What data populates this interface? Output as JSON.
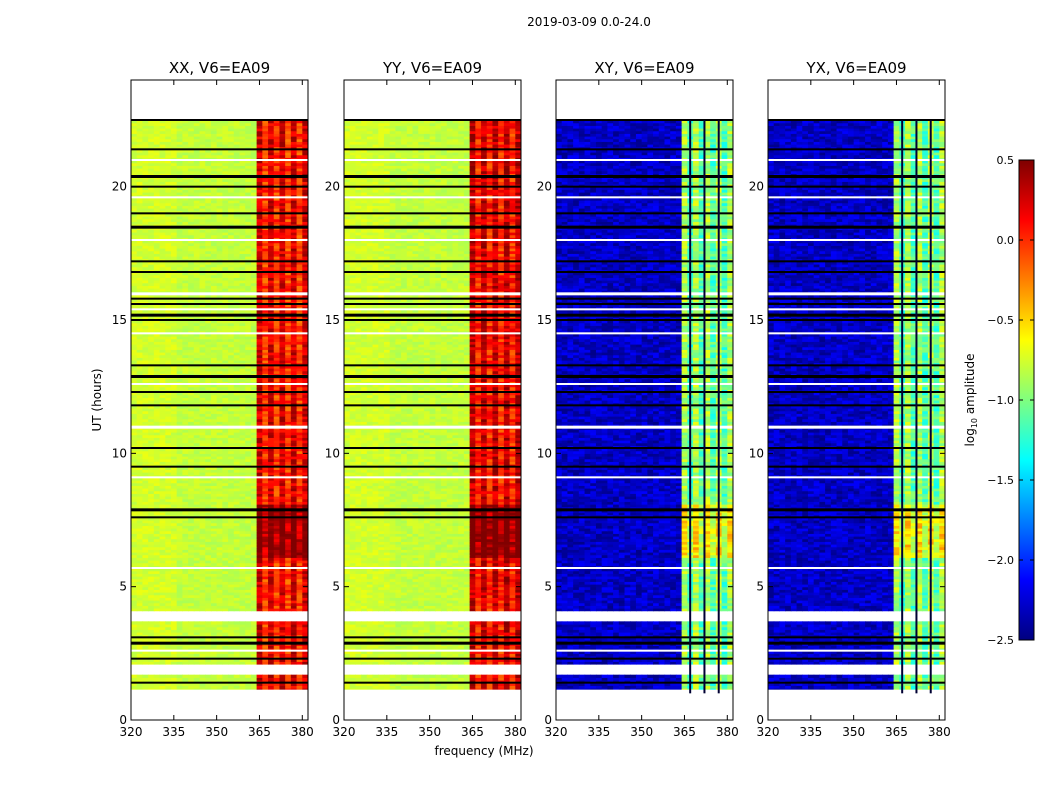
{
  "figure_title": "2019-03-09 0.0-24.0",
  "chart_data": {
    "type": "heatmap",
    "xlabel": "frequency (MHz)",
    "ylabel": "UT (hours)",
    "xlim": [
      320,
      382
    ],
    "ylim": [
      0,
      24
    ],
    "x_ticks": [
      320,
      335,
      350,
      365,
      380
    ],
    "y_ticks": [
      0,
      5,
      10,
      15,
      20
    ],
    "colorbar": {
      "label": "log10 amplitude",
      "label_main": "log",
      "label_sub": "10",
      "label_rest": " amplitude",
      "range": [
        -2.5,
        0.5
      ],
      "ticks": [
        0.5,
        0.0,
        -0.5,
        -1.0,
        -1.5,
        -2.0,
        -2.5
      ],
      "tick_labels": [
        "0.5",
        "0.0",
        "−0.5",
        "−1.0",
        "−1.5",
        "−2.0",
        "−2.5"
      ],
      "colormap": "jet"
    },
    "data_time_range": [
      1.0,
      22.5
    ],
    "data_gaps_hours": [
      [
        3.7,
        4.1
      ],
      [
        1.7,
        2.1
      ],
      [
        0.9,
        1.05
      ]
    ],
    "flagged_rows_hours": [
      1.1,
      1.4,
      2.3,
      2.6,
      2.9,
      3.1,
      5.7,
      7.6,
      7.9,
      9.1,
      9.5,
      10.2,
      11.0,
      11.8,
      12.3,
      12.6,
      12.9,
      13.3,
      14.5,
      15.0,
      15.2,
      15.4,
      15.6,
      15.8,
      16.0,
      16.8,
      17.2,
      18.0,
      18.5,
      19.0,
      19.6,
      20.0,
      20.4,
      21.0,
      21.4,
      22.5
    ],
    "panels": [
      {
        "title": "XX, V6=EA09",
        "polarization": "XX",
        "baseline": "V6=EA09",
        "background_log10_amp": -0.8,
        "band_freq_range": [
          364,
          380
        ],
        "band_log10_amp": 0.1
      },
      {
        "title": "YY, V6=EA09",
        "polarization": "YY",
        "baseline": "V6=EA09",
        "background_log10_amp": -0.8,
        "band_freq_range": [
          364,
          380
        ],
        "band_log10_amp": 0.15
      },
      {
        "title": "XY, V6=EA09",
        "polarization": "XY",
        "baseline": "V6=EA09",
        "background_log10_amp": -2.3,
        "band_freq_range": [
          364,
          380
        ],
        "band_log10_amp": -1.0
      },
      {
        "title": "YX, V6=EA09",
        "polarization": "YX",
        "baseline": "V6=EA09",
        "background_log10_amp": -2.3,
        "band_freq_range": [
          364,
          380
        ],
        "band_log10_amp": -1.0
      }
    ]
  }
}
